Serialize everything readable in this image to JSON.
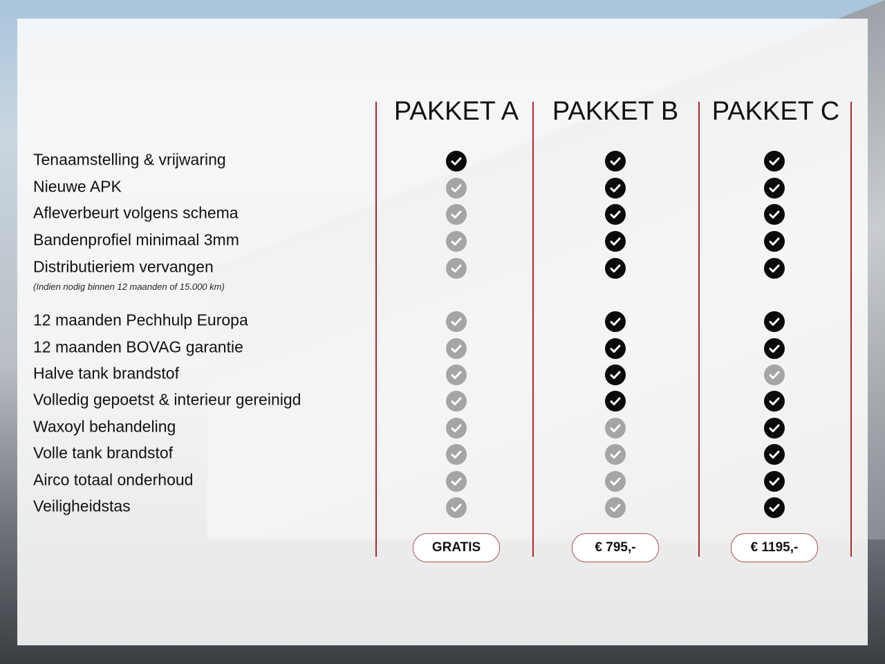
{
  "packages": [
    {
      "name": "PAKKET A",
      "price": "GRATIS"
    },
    {
      "name": "PAKKET B",
      "price": "€ 795,-"
    },
    {
      "name": "PAKKET C",
      "price": "€ 1195,-"
    }
  ],
  "note": "(Indien nodig binnen 12 maanden of 15.000 km)",
  "features": [
    {
      "label": "Tenaamstelling & vrijwaring",
      "included": [
        true,
        true,
        true
      ]
    },
    {
      "label": "Nieuwe APK",
      "included": [
        false,
        true,
        true
      ]
    },
    {
      "label": "Afleverbeurt volgens schema",
      "included": [
        false,
        true,
        true
      ]
    },
    {
      "label": "Bandenprofiel minimaal 3mm",
      "included": [
        false,
        true,
        true
      ]
    },
    {
      "label": "Distributieriem vervangen",
      "included": [
        false,
        true,
        true
      ]
    },
    {
      "label": "12 maanden Pechhulp Europa",
      "included": [
        false,
        true,
        true
      ]
    },
    {
      "label": "12 maanden BOVAG garantie",
      "included": [
        false,
        true,
        true
      ]
    },
    {
      "label": "Halve tank brandstof",
      "included": [
        false,
        true,
        false
      ]
    },
    {
      "label": "Volledig gepoetst & interieur gereinigd",
      "included": [
        false,
        true,
        true
      ]
    },
    {
      "label": "Waxoyl behandeling",
      "included": [
        false,
        false,
        true
      ]
    },
    {
      "label": "Volle tank brandstof",
      "included": [
        false,
        false,
        true
      ]
    },
    {
      "label": "Airco totaal onderhoud",
      "included": [
        false,
        false,
        true
      ]
    },
    {
      "label": "Veiligheidstas",
      "included": [
        false,
        false,
        true
      ]
    }
  ],
  "colors": {
    "divider": "#b3262a",
    "included": "#0a0a0a",
    "excluded": "#a5a5a5"
  },
  "icons": {
    "check": "check-circle-icon"
  }
}
